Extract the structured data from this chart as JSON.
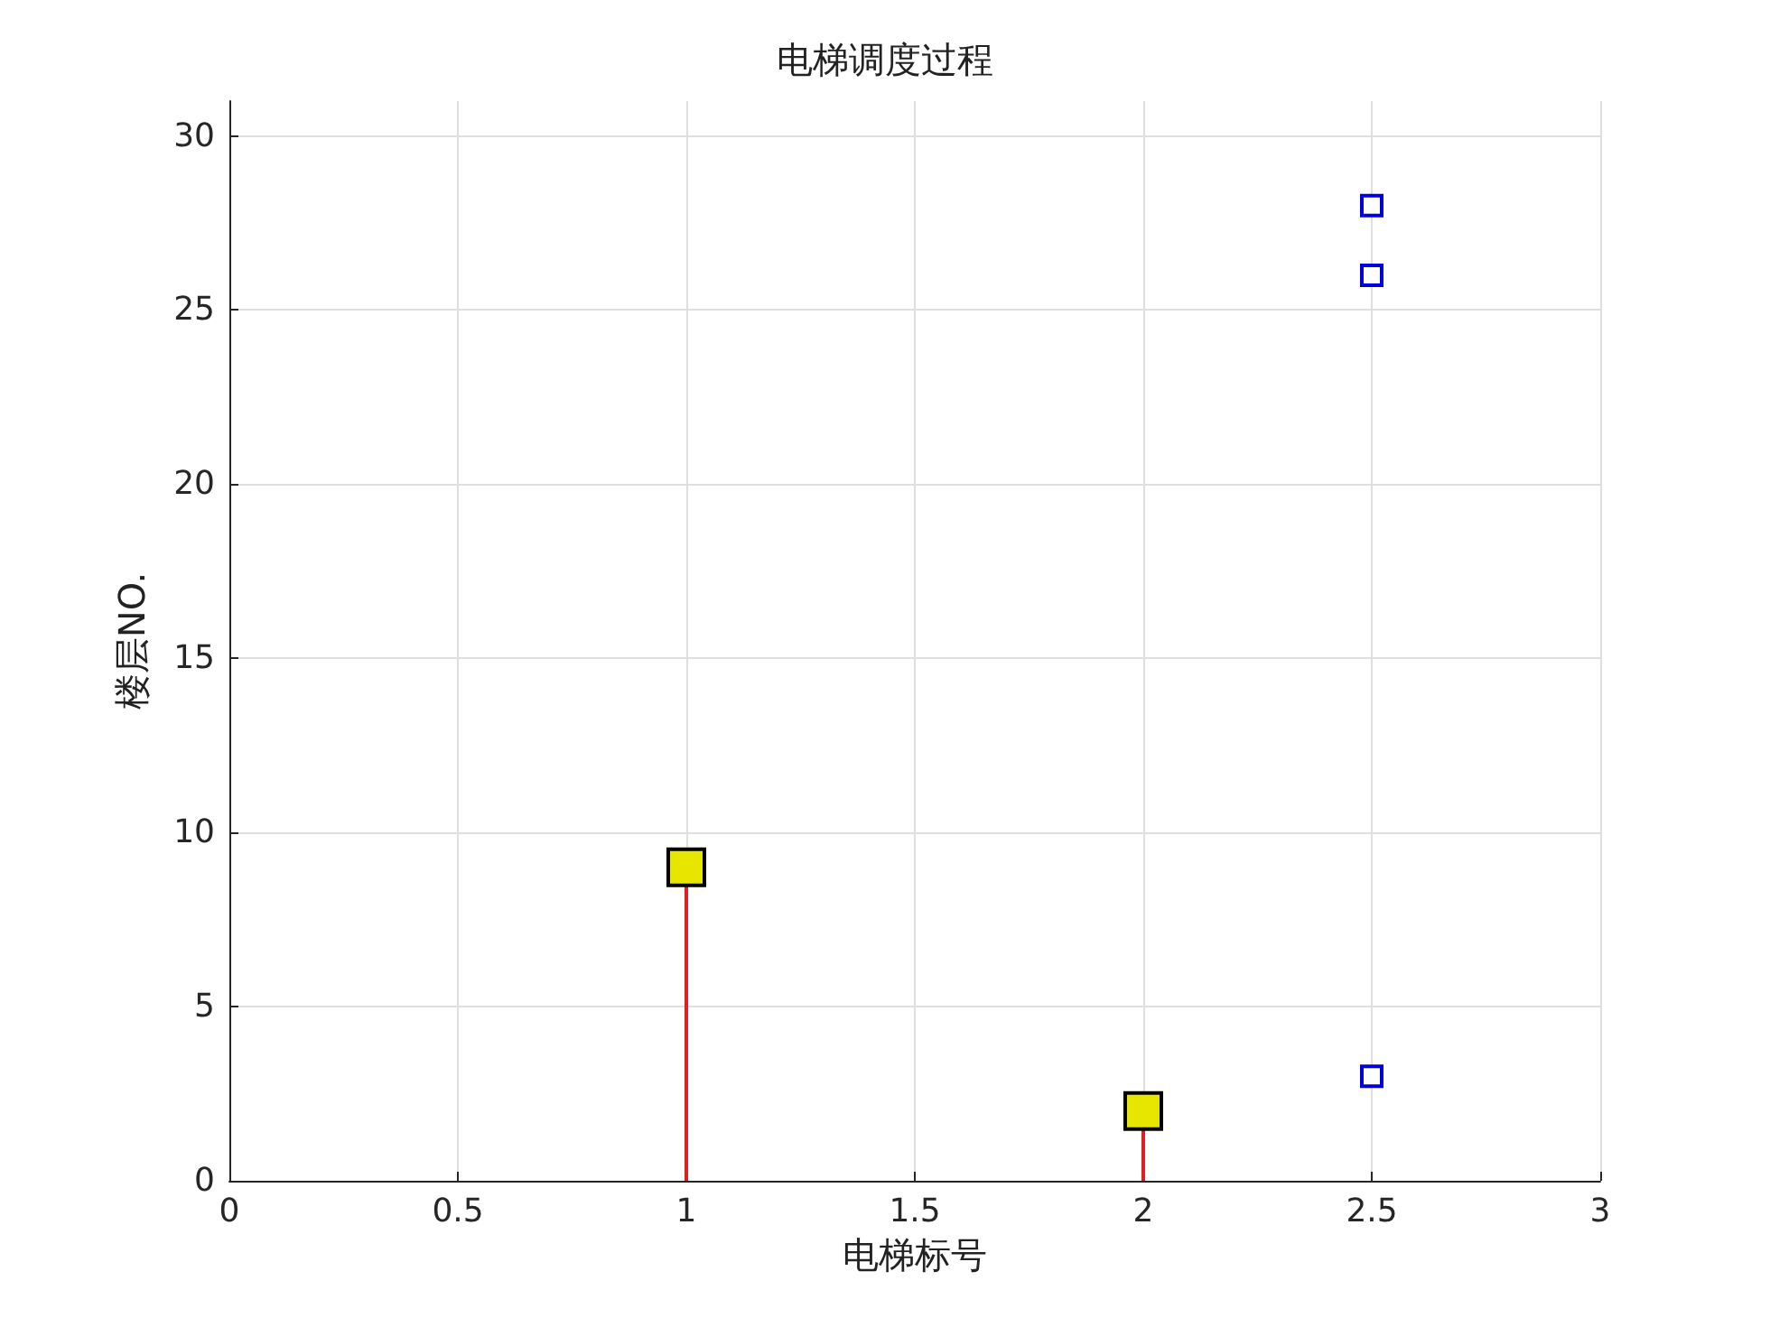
{
  "chart_data": {
    "type": "lollipop",
    "title": "电梯调度过程",
    "xlabel": "电梯标号",
    "ylabel": "楼层NO.",
    "xlim": [
      0,
      3
    ],
    "xticks": [
      0,
      0.5,
      1,
      1.5,
      2,
      2.5,
      3
    ],
    "ylim": [
      0,
      31
    ],
    "yticks": [
      0,
      5,
      10,
      15,
      20,
      25,
      30
    ],
    "grid": true,
    "series": [
      {
        "x": [
          1,
          2
        ],
        "values": [
          9,
          2
        ],
        "color": "#e02020",
        "colors": [
          "#e6e600",
          "#e6e600"
        ],
        "marker": "square"
      },
      {
        "type": "scatter",
        "x": [
          2.5,
          2.5,
          2.5
        ],
        "values": [
          28,
          26,
          3
        ],
        "color": "#0000dd",
        "marker": "square"
      }
    ]
  }
}
